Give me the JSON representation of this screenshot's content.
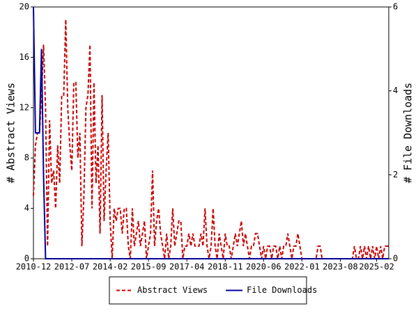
{
  "chart_data": {
    "type": "line",
    "categories": [
      "2010-12",
      null,
      null,
      null,
      null,
      null,
      null,
      null,
      null,
      null,
      null,
      null,
      null,
      null,
      null,
      null,
      null,
      null,
      null,
      "2012-07",
      null,
      null,
      null,
      null,
      null,
      null,
      null,
      null,
      null,
      null,
      null,
      null,
      null,
      null,
      null,
      null,
      null,
      null,
      "2014-02",
      null,
      null,
      null,
      null,
      null,
      null,
      null,
      null,
      null,
      null,
      null,
      null,
      null,
      null,
      null,
      null,
      null,
      null,
      "2015-09",
      null,
      null,
      null,
      null,
      null,
      null,
      null,
      null,
      null,
      null,
      null,
      null,
      null,
      null,
      null,
      null,
      null,
      null,
      "2017-04",
      null,
      null,
      null,
      null,
      null,
      null,
      null,
      null,
      null,
      null,
      null,
      null,
      null,
      null,
      null,
      null,
      null,
      null,
      "2018-11",
      null,
      null,
      null,
      null,
      null,
      null,
      null,
      null,
      null,
      null,
      null,
      null,
      null,
      null,
      null,
      null,
      null,
      null,
      "2020-06",
      null,
      null,
      null,
      null,
      null,
      null,
      null,
      null,
      null,
      null,
      null,
      null,
      null,
      null,
      null,
      null,
      null,
      null,
      "2022-01",
      null,
      null,
      null,
      null,
      null,
      null,
      null,
      null,
      null,
      null,
      null,
      null,
      null,
      null,
      null,
      null,
      null,
      null,
      "2023-08",
      null,
      null,
      null,
      null,
      null,
      null,
      null,
      null,
      null,
      null,
      null,
      null,
      null,
      null,
      null,
      null,
      null,
      "2025-02",
      null,
      null,
      null,
      null,
      null,
      null
    ],
    "series": [
      {
        "name": "Abstract Views",
        "color": "#cc0000",
        "dashed": true,
        "values": [
          5,
          9,
          10,
          10,
          13,
          17,
          12,
          1,
          11,
          6,
          7,
          4,
          9,
          6,
          13,
          13,
          19,
          12,
          9,
          7,
          14,
          14,
          8,
          10,
          1,
          5,
          12,
          13,
          17,
          4,
          14,
          6,
          9,
          2,
          13,
          3,
          7,
          10,
          3,
          0,
          4,
          3,
          4,
          4,
          2,
          4,
          4,
          1,
          0,
          4,
          1,
          2,
          3,
          1,
          2,
          3,
          0,
          1,
          2,
          7,
          1,
          3,
          4,
          2,
          1,
          0,
          2,
          0,
          1,
          4,
          1,
          2,
          3,
          3,
          0,
          1,
          1,
          2,
          1,
          2,
          1,
          1,
          1,
          2,
          1,
          4,
          1,
          0,
          1,
          4,
          1,
          0,
          2,
          1,
          0,
          2,
          1,
          1,
          0,
          1,
          2,
          1,
          2,
          3,
          1,
          2,
          1,
          0,
          1,
          1,
          2,
          2,
          1,
          0,
          1,
          0,
          1,
          1,
          0,
          1,
          1,
          0,
          1,
          0,
          1,
          1,
          2,
          1,
          0,
          1,
          1,
          2,
          1,
          0,
          0,
          0,
          0,
          0,
          0,
          0,
          0,
          1,
          1,
          0,
          0,
          0,
          0,
          0,
          0,
          0,
          0,
          0,
          0,
          0,
          0,
          0,
          0,
          0,
          0,
          1,
          0,
          0,
          1,
          0,
          1,
          0,
          1,
          0,
          1,
          0,
          1,
          0,
          1,
          0,
          1,
          1,
          1
        ]
      },
      {
        "name": "File Downloads",
        "color": "#000099",
        "axis": "y2",
        "values": [
          6,
          3,
          3,
          3,
          5,
          2,
          0,
          0,
          0,
          0,
          0,
          0,
          0,
          0,
          0,
          0,
          0,
          0,
          0,
          0,
          0,
          0,
          0,
          0,
          0,
          0,
          0,
          0,
          0,
          0,
          0,
          0,
          0,
          0,
          0,
          0,
          0,
          0,
          0,
          0,
          0,
          0,
          0,
          0,
          0,
          0,
          0,
          0,
          0,
          0,
          0,
          0,
          0,
          0,
          0,
          0,
          0,
          0,
          0,
          0,
          0,
          0,
          0,
          0,
          0,
          0,
          0,
          0,
          0,
          0,
          0,
          0,
          0,
          0,
          0,
          0,
          0,
          0,
          0,
          0,
          0,
          0,
          0,
          0,
          0,
          0,
          0,
          0,
          0,
          0,
          0,
          0,
          0,
          0,
          0,
          0,
          0,
          0,
          0,
          0,
          0,
          0,
          0,
          0,
          0,
          0,
          0,
          0,
          0,
          0,
          0,
          0,
          0,
          0,
          0,
          0,
          0,
          0,
          0,
          0,
          0,
          0,
          0,
          0,
          0,
          0,
          0,
          0,
          0,
          0,
          0,
          0,
          0,
          0,
          0,
          0,
          0,
          0,
          0,
          0,
          0,
          0,
          0,
          0,
          0,
          0,
          0,
          0,
          0,
          0,
          0,
          0,
          0,
          0,
          0,
          0,
          0,
          0,
          0,
          0,
          0,
          0,
          0,
          0,
          0,
          0,
          0,
          0,
          0,
          0,
          0,
          0,
          0,
          0,
          0,
          0,
          0
        ]
      }
    ],
    "ylabel": "# Abstract Views",
    "y2label": "# File Downloads",
    "ylim": [
      0,
      20
    ],
    "yticks": [
      0,
      4,
      8,
      12,
      16,
      20
    ],
    "y2lim": [
      0,
      6
    ],
    "y2ticks": [
      0,
      2,
      4,
      6
    ]
  }
}
